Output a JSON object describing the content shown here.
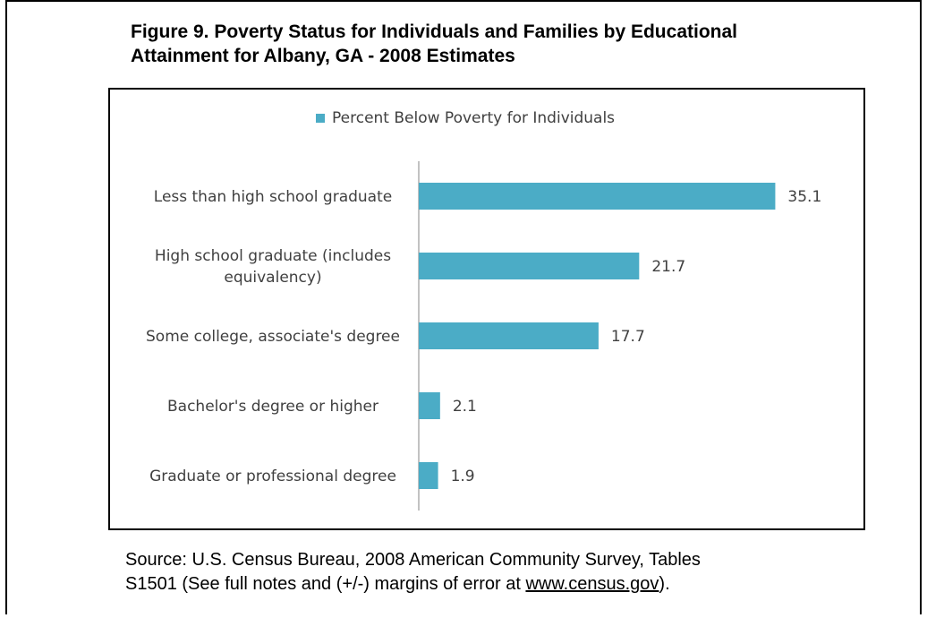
{
  "figure": {
    "title_line1": "Figure 9. Poverty Status for Individuals and Families by Educational",
    "title_line2": "Attainment for Albany, GA - 2008 Estimates"
  },
  "chart_data": {
    "type": "bar",
    "orientation": "horizontal",
    "categories": [
      [
        "Less than high school graduate"
      ],
      [
        "High school graduate (includes",
        "equivalency)"
      ],
      [
        "Some college, associate's degree"
      ],
      [
        "Bachelor's degree or higher"
      ],
      [
        "Graduate or professional degree"
      ]
    ],
    "series": [
      {
        "name": "Percent Below Poverty for Individuals",
        "values": [
          35.1,
          21.7,
          17.7,
          2.1,
          1.9
        ],
        "color": "#4BACC6"
      }
    ],
    "xlim": [
      0,
      37
    ],
    "grid": false,
    "legend_position": "top",
    "data_labels": true
  },
  "source": {
    "line1": "Source: U.S. Census Bureau, 2008 American Community Survey, Tables",
    "line2_prefix": "S1501 (See full notes and (+/-) margins of error at ",
    "link": "www.census.gov",
    "line2_suffix": ")."
  }
}
